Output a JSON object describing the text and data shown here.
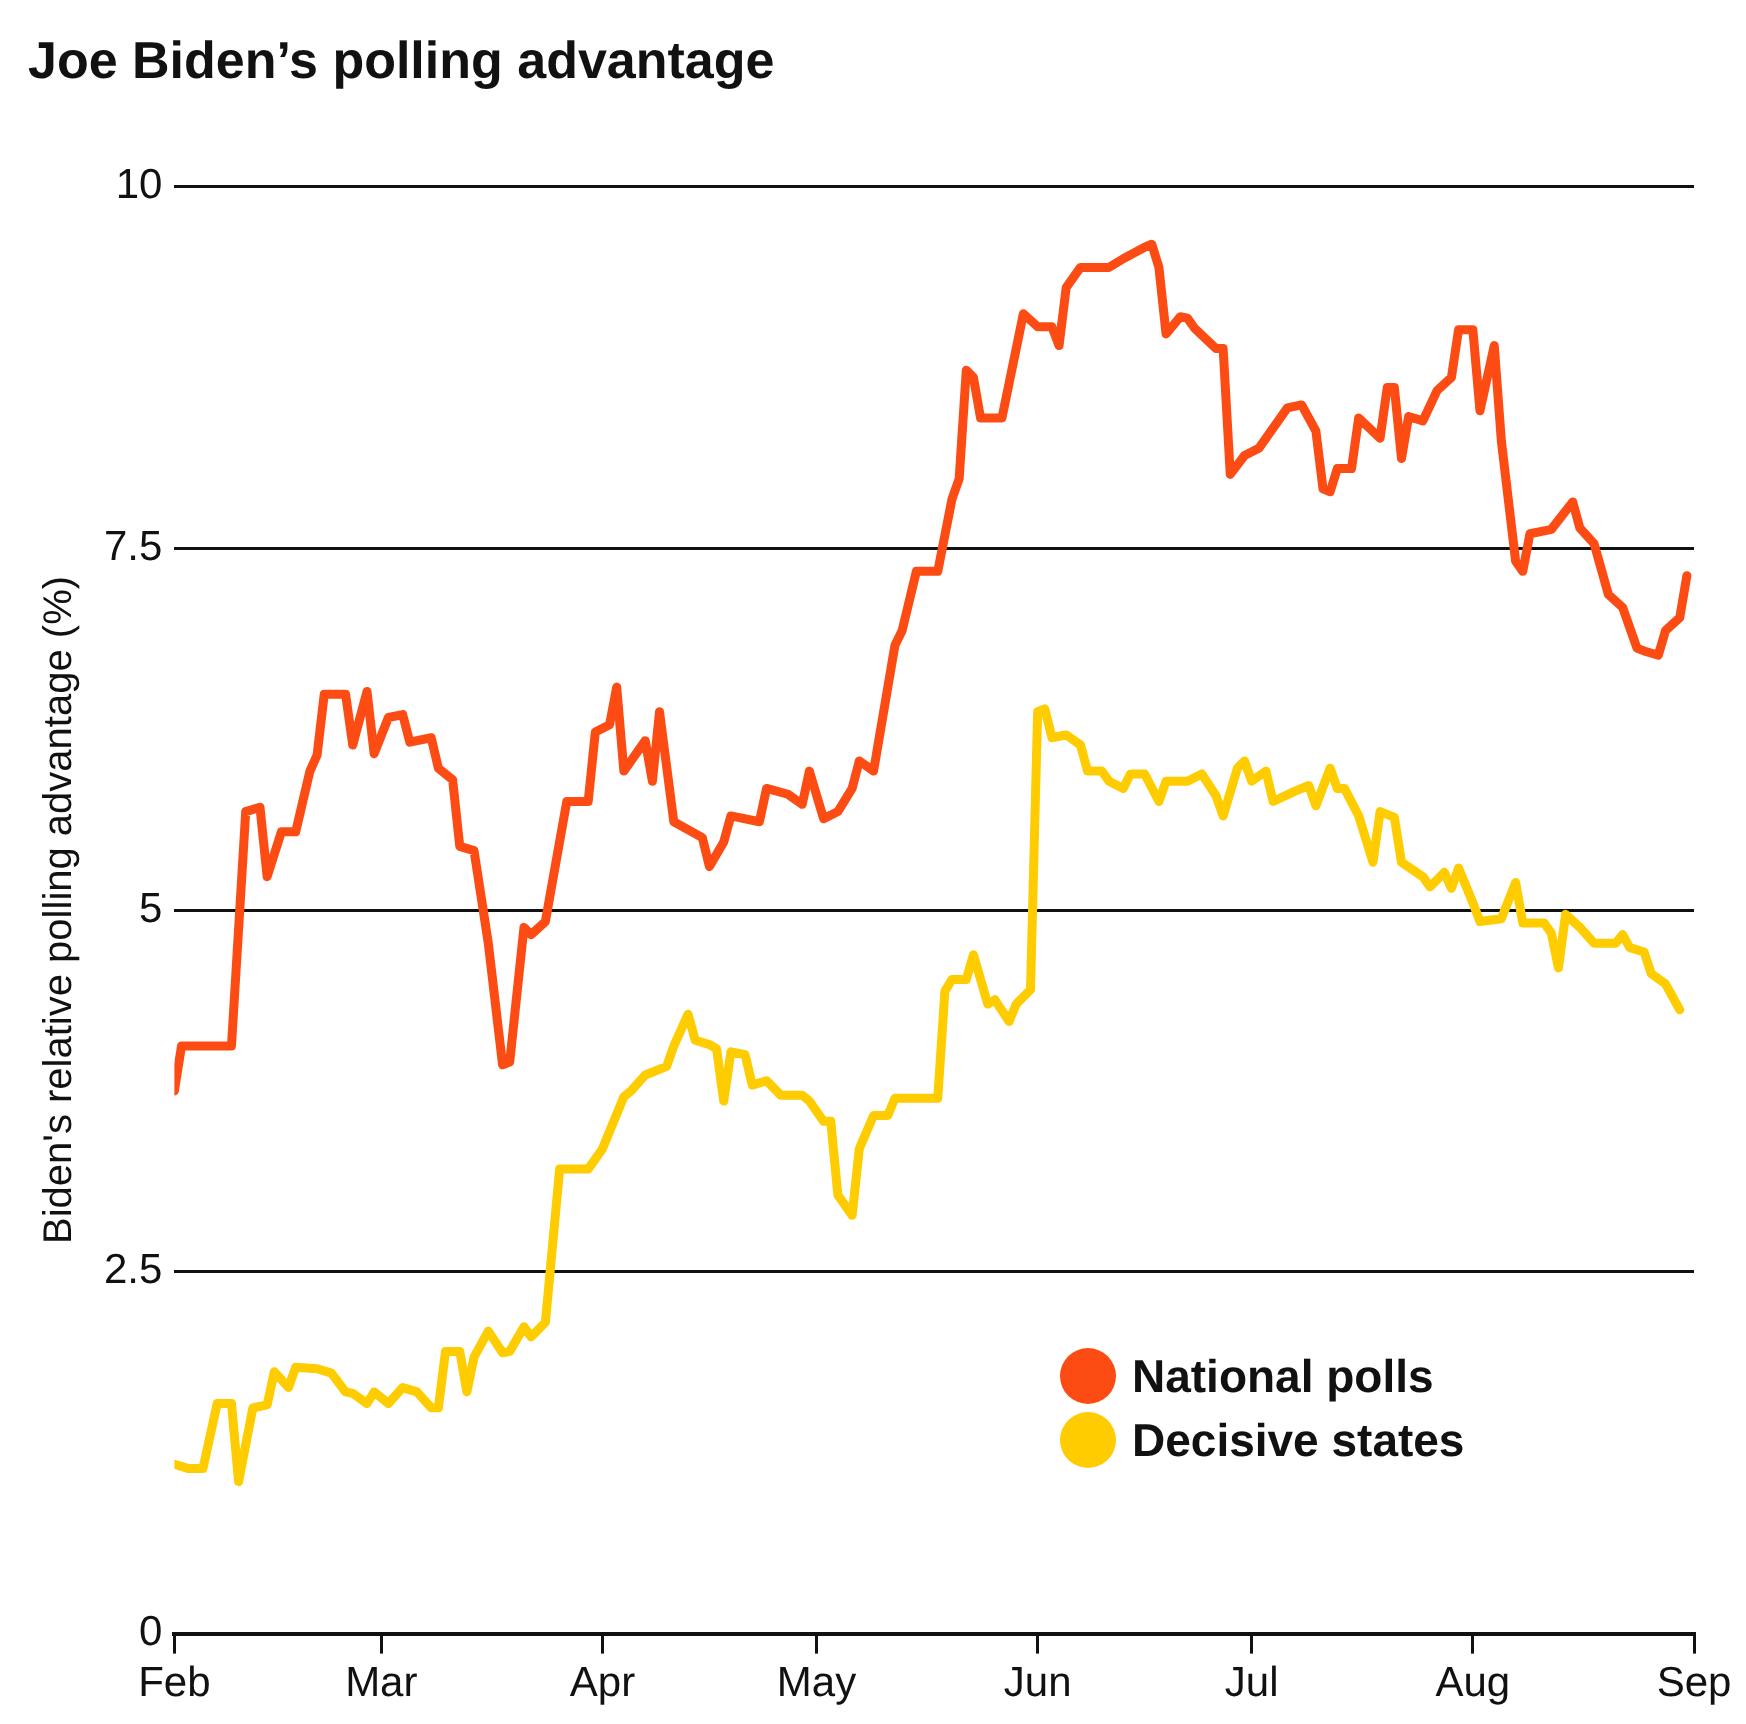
{
  "chart_data": {
    "type": "line",
    "title": "Joe Biden’s polling advantage",
    "ylabel": "Biden's relative polling advantage (%)",
    "xlim": [
      "--02-01",
      "--09-01"
    ],
    "xticks": [
      {
        "value": "--02-01",
        "label": "Feb"
      },
      {
        "value": "--03-01",
        "label": "Mar"
      },
      {
        "value": "--04-01",
        "label": "Apr"
      },
      {
        "value": "--05-01",
        "label": "May"
      },
      {
        "value": "--06-01",
        "label": "Jun"
      },
      {
        "value": "--07-01",
        "label": "Jul"
      },
      {
        "value": "--08-01",
        "label": "Aug"
      },
      {
        "value": "--09-01",
        "label": "Sep"
      }
    ],
    "ylim": [
      0,
      10
    ],
    "yticks": [
      0,
      2.5,
      5,
      7.5,
      10
    ],
    "grid": "y",
    "legend": "bottom right",
    "marker": "none",
    "line_style": "solid",
    "series": [
      {
        "name": "National polls",
        "color": "#fc4c14",
        "x": [
          "--02-01",
          "--02-02",
          "--02-09",
          "--02-11",
          "--02-13",
          "--02-14",
          "--02-16",
          "--02-18",
          "--02-20",
          "--02-21",
          "--02-22",
          "--02-25",
          "--02-26",
          "--02-28",
          "--02-29",
          "--03-02",
          "--03-04",
          "--03-05",
          "--03-08",
          "--03-09",
          "--03-11",
          "--03-12",
          "--03-14",
          "--03-16",
          "--03-18",
          "--03-19",
          "--03-21",
          "--03-22",
          "--03-24",
          "--03-27",
          "--03-30",
          "--03-31",
          "--04-02",
          "--04-03",
          "--04-04",
          "--04-07",
          "--04-08",
          "--04-09",
          "--04-11",
          "--04-15",
          "--04-16",
          "--04-18",
          "--04-19",
          "--04-23",
          "--04-24",
          "--04-27",
          "--04-29",
          "--04-30",
          "--05-02",
          "--05-04",
          "--05-06",
          "--05-07",
          "--05-09",
          "--05-12",
          "--05-13",
          "--05-15",
          "--05-18",
          "--05-20",
          "--05-21",
          "--05-22",
          "--05-23",
          "--05-24",
          "--05-27",
          "--05-30",
          "--06-01",
          "--06-03",
          "--06-04",
          "--06-05",
          "--06-07",
          "--06-11",
          "--06-13",
          "--06-16",
          "--06-17",
          "--06-18",
          "--06-19",
          "--06-21",
          "--06-22",
          "--06-23",
          "--06-26",
          "--06-27",
          "--06-28",
          "--06-30",
          "--07-02",
          "--07-04",
          "--07-06",
          "--07-08",
          "--07-10",
          "--07-11",
          "--07-12",
          "--07-13",
          "--07-15",
          "--07-16",
          "--07-19",
          "--07-20",
          "--07-21",
          "--07-22",
          "--07-23",
          "--07-25",
          "--07-27",
          "--07-29",
          "--07-30",
          "--08-01",
          "--08-02",
          "--08-04",
          "--08-05",
          "--08-07",
          "--08-08",
          "--08-09",
          "--08-11",
          "--08-12",
          "--08-15",
          "--08-16",
          "--08-18",
          "--08-20",
          "--08-22",
          "--08-24",
          "--08-25",
          "--08-27",
          "--08-28",
          "--08-30",
          "--08-31"
        ],
        "values": [
          3.75,
          4.06,
          4.06,
          5.68,
          5.71,
          5.23,
          5.54,
          5.54,
          5.96,
          6.07,
          6.49,
          6.49,
          6.14,
          6.51,
          6.08,
          6.33,
          6.35,
          6.16,
          6.19,
          5.98,
          5.9,
          5.44,
          5.41,
          4.77,
          3.93,
          3.95,
          4.88,
          4.83,
          4.92,
          5.75,
          5.75,
          6.23,
          6.28,
          6.54,
          5.96,
          6.17,
          5.89,
          6.37,
          5.61,
          5.5,
          5.3,
          5.47,
          5.65,
          5.61,
          5.84,
          5.8,
          5.73,
          5.96,
          5.63,
          5.68,
          5.84,
          6.03,
          5.96,
          6.83,
          6.93,
          7.34,
          7.34,
          7.84,
          7.98,
          8.73,
          8.68,
          8.4,
          8.4,
          9.12,
          9.03,
          9.03,
          8.9,
          9.3,
          9.44,
          9.44,
          9.5,
          9.58,
          9.6,
          9.44,
          8.98,
          9.1,
          9.09,
          9.02,
          8.88,
          8.88,
          8.01,
          8.14,
          8.19,
          8.33,
          8.47,
          8.49,
          8.31,
          7.91,
          7.89,
          8.05,
          8.05,
          8.4,
          8.26,
          8.61,
          8.61,
          8.12,
          8.41,
          8.38,
          8.59,
          8.68,
          9.01,
          9.01,
          8.45,
          8.9,
          8.24,
          7.41,
          7.34,
          7.6,
          7.62,
          7.63,
          7.82,
          7.64,
          7.53,
          7.18,
          7.09,
          6.81,
          6.79,
          6.76,
          6.93,
          7.02,
          7.31
        ]
      },
      {
        "name": "Decisive states",
        "color": "#ffcc00",
        "x": [
          "--02-01",
          "--02-03",
          "--02-05",
          "--02-07",
          "--02-09",
          "--02-10",
          "--02-12",
          "--02-14",
          "--02-15",
          "--02-17",
          "--02-18",
          "--02-21",
          "--02-23",
          "--02-25",
          "--02-26",
          "--02-28",
          "--02-29",
          "--03-02",
          "--03-04",
          "--03-06",
          "--03-08",
          "--03-09",
          "--03-10",
          "--03-12",
          "--03-13",
          "--03-14",
          "--03-16",
          "--03-18",
          "--03-19",
          "--03-21",
          "--03-22",
          "--03-24",
          "--03-26",
          "--03-30",
          "--04-01",
          "--04-04",
          "--04-05",
          "--04-07",
          "--04-10",
          "--04-11",
          "--04-13",
          "--04-14",
          "--04-16",
          "--04-17",
          "--04-18",
          "--04-19",
          "--04-21",
          "--04-22",
          "--04-24",
          "--04-26",
          "--04-29",
          "--04-30",
          "--05-02",
          "--05-03",
          "--05-04",
          "--05-06",
          "--05-07",
          "--05-09",
          "--05-11",
          "--05-12",
          "--05-18",
          "--05-19",
          "--05-20",
          "--05-22",
          "--05-23",
          "--05-25",
          "--05-26",
          "--05-28",
          "--05-29",
          "--05-31",
          "--06-01",
          "--06-02",
          "--06-03",
          "--06-05",
          "--06-07",
          "--06-08",
          "--06-10",
          "--06-11",
          "--06-13",
          "--06-14",
          "--06-16",
          "--06-18",
          "--06-19",
          "--06-22",
          "--06-24",
          "--06-26",
          "--06-27",
          "--06-29",
          "--06-30",
          "--07-01",
          "--07-03",
          "--07-04",
          "--07-07",
          "--07-09",
          "--07-10",
          "--07-12",
          "--07-13",
          "--07-14",
          "--07-16",
          "--07-18",
          "--07-19",
          "--07-21",
          "--07-22",
          "--07-25",
          "--07-26",
          "--07-28",
          "--07-29",
          "--07-30",
          "--08-01",
          "--08-02",
          "--08-05",
          "--08-07",
          "--08-08",
          "--08-11",
          "--08-12",
          "--08-13",
          "--08-14",
          "--08-16",
          "--08-18",
          "--08-21",
          "--08-22",
          "--08-23",
          "--08-25",
          "--08-26",
          "--08-28",
          "--08-30"
        ],
        "values": [
          1.17,
          1.14,
          1.14,
          1.59,
          1.59,
          1.05,
          1.56,
          1.58,
          1.81,
          1.7,
          1.84,
          1.83,
          1.8,
          1.67,
          1.66,
          1.59,
          1.67,
          1.59,
          1.7,
          1.67,
          1.56,
          1.56,
          1.95,
          1.95,
          1.67,
          1.91,
          2.09,
          1.94,
          1.95,
          2.12,
          2.05,
          2.15,
          3.21,
          3.21,
          3.35,
          3.71,
          3.75,
          3.86,
          3.92,
          4.06,
          4.28,
          4.1,
          4.07,
          4.04,
          3.68,
          4.02,
          4.0,
          3.79,
          3.82,
          3.72,
          3.72,
          3.68,
          3.54,
          3.54,
          3.03,
          2.89,
          3.35,
          3.58,
          3.58,
          3.7,
          3.7,
          4.44,
          4.52,
          4.52,
          4.69,
          4.35,
          4.38,
          4.23,
          4.35,
          4.45,
          6.37,
          6.39,
          6.19,
          6.21,
          6.14,
          5.96,
          5.96,
          5.89,
          5.84,
          5.94,
          5.94,
          5.75,
          5.89,
          5.89,
          5.94,
          5.79,
          5.65,
          5.98,
          6.03,
          5.89,
          5.96,
          5.75,
          5.82,
          5.86,
          5.72,
          5.98,
          5.84,
          5.84,
          5.65,
          5.33,
          5.68,
          5.64,
          5.33,
          5.23,
          5.16,
          5.26,
          5.15,
          5.29,
          5.05,
          4.92,
          4.94,
          5.19,
          4.91,
          4.91,
          4.84,
          4.6,
          4.97,
          4.88,
          4.77,
          4.77,
          4.83,
          4.74,
          4.71,
          4.56,
          4.49,
          4.31
        ]
      }
    ]
  }
}
